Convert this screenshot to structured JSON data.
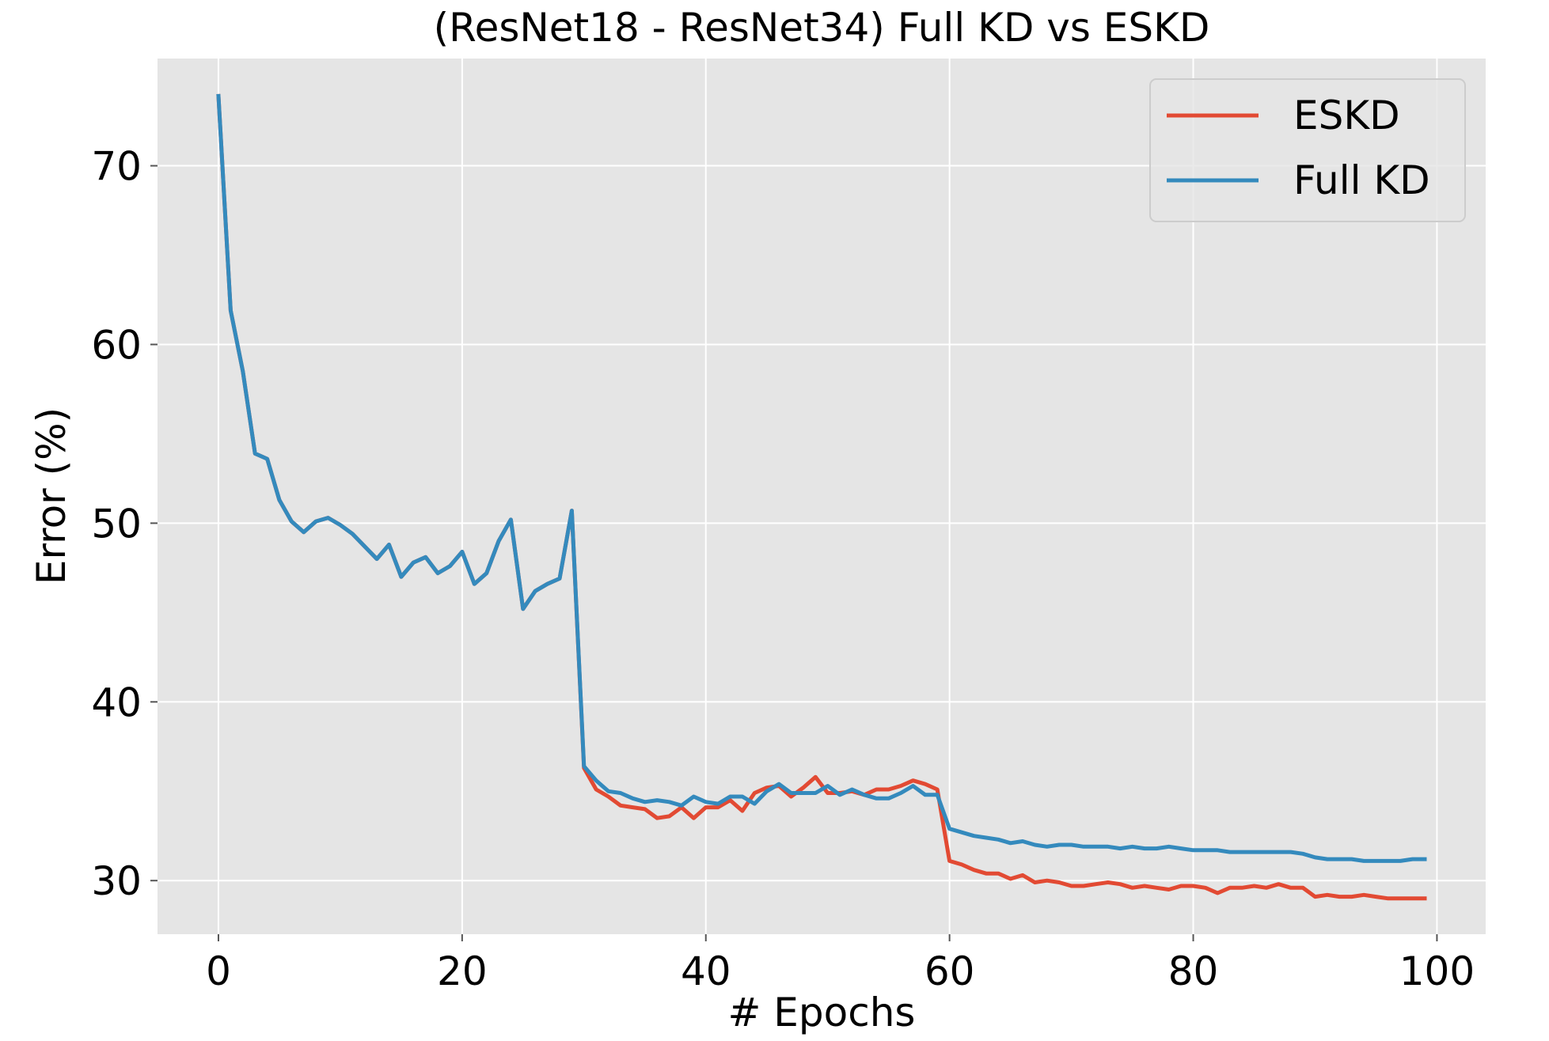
{
  "chart_data": {
    "type": "line",
    "title": "(ResNet18 - ResNet34) Full KD vs ESKD",
    "xlabel": "# Epochs",
    "ylabel": "Error (%)",
    "xlim": [
      -5,
      104
    ],
    "ylim": [
      27,
      76
    ],
    "xticks": [
      0,
      20,
      40,
      60,
      80,
      100
    ],
    "yticks": [
      30,
      40,
      50,
      60,
      70
    ],
    "grid": true,
    "legend_position": "top-right",
    "series": [
      {
        "name": "ESKD",
        "color": "#E24A33",
        "values": [
          73.9,
          61.9,
          58.5,
          53.9,
          53.6,
          51.3,
          50.1,
          49.5,
          50.1,
          50.3,
          49.9,
          49.4,
          48.7,
          48.0,
          48.8,
          47.0,
          47.8,
          48.1,
          47.2,
          47.6,
          48.4,
          46.6,
          47.2,
          49.0,
          50.2,
          45.2,
          46.2,
          46.6,
          46.9,
          50.7,
          36.3,
          35.1,
          34.7,
          34.2,
          34.1,
          34.0,
          33.5,
          33.6,
          34.1,
          33.5,
          34.1,
          34.1,
          34.5,
          33.9,
          34.9,
          35.2,
          35.3,
          34.7,
          35.2,
          35.8,
          34.9,
          34.9,
          35.0,
          34.8,
          35.1,
          35.1,
          35.3,
          35.6,
          35.4,
          35.1,
          31.1,
          30.9,
          30.6,
          30.4,
          30.4,
          30.1,
          30.3,
          29.9,
          30.0,
          29.9,
          29.7,
          29.7,
          29.8,
          29.9,
          29.8,
          29.6,
          29.7,
          29.6,
          29.5,
          29.7,
          29.7,
          29.6,
          29.3,
          29.6,
          29.6,
          29.7,
          29.6,
          29.8,
          29.6,
          29.6,
          29.1,
          29.2,
          29.1,
          29.1,
          29.2,
          29.1,
          29.0,
          29.0,
          29.0,
          29.0
        ]
      },
      {
        "name": "Full KD",
        "color": "#348ABD",
        "values": [
          73.9,
          61.9,
          58.5,
          53.9,
          53.6,
          51.3,
          50.1,
          49.5,
          50.1,
          50.3,
          49.9,
          49.4,
          48.7,
          48.0,
          48.8,
          47.0,
          47.8,
          48.1,
          47.2,
          47.6,
          48.4,
          46.6,
          47.2,
          49.0,
          50.2,
          45.2,
          46.2,
          46.6,
          46.9,
          50.7,
          36.4,
          35.6,
          35.0,
          34.9,
          34.6,
          34.4,
          34.5,
          34.4,
          34.2,
          34.7,
          34.4,
          34.3,
          34.7,
          34.7,
          34.3,
          35.0,
          35.4,
          34.9,
          34.9,
          34.9,
          35.3,
          34.8,
          35.1,
          34.8,
          34.6,
          34.6,
          34.9,
          35.3,
          34.8,
          34.8,
          32.9,
          32.7,
          32.5,
          32.4,
          32.3,
          32.1,
          32.2,
          32.0,
          31.9,
          32.0,
          32.0,
          31.9,
          31.9,
          31.9,
          31.8,
          31.9,
          31.8,
          31.8,
          31.9,
          31.8,
          31.7,
          31.7,
          31.7,
          31.6,
          31.6,
          31.6,
          31.6,
          31.6,
          31.6,
          31.5,
          31.3,
          31.2,
          31.2,
          31.2,
          31.1,
          31.1,
          31.1,
          31.1,
          31.2,
          31.2
        ]
      }
    ]
  }
}
